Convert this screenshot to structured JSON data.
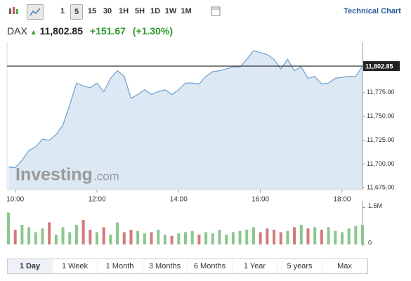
{
  "toolbar": {
    "intervals": [
      "1",
      "5",
      "15",
      "30",
      "1H",
      "5H",
      "1D",
      "1W",
      "1M"
    ],
    "link": "Technical Chart"
  },
  "header": {
    "symbol": "DAX",
    "price": "11,802.85",
    "change": "+151.67",
    "change_pct": "(+1.30%)"
  },
  "watermark": {
    "brand": "Investing",
    "suffix": ".com"
  },
  "ranges": [
    "1 Day",
    "1 Week",
    "1 Month",
    "3 Months",
    "6 Months",
    "1 Year",
    "5 years",
    "Max"
  ],
  "chart_data": [
    {
      "type": "area",
      "color": "#6f9fd0",
      "fill": "#dce8f4",
      "x": [
        "9:50",
        "10:00",
        "10:10",
        "10:20",
        "10:30",
        "10:40",
        "10:50",
        "11:00",
        "11:10",
        "11:20",
        "11:30",
        "11:40",
        "11:50",
        "12:00",
        "12:10",
        "12:20",
        "12:30",
        "12:40",
        "12:50",
        "13:00",
        "13:10",
        "13:20",
        "13:30",
        "13:40",
        "13:50",
        "14:00",
        "14:10",
        "14:20",
        "14:30",
        "14:40",
        "14:50",
        "15:00",
        "15:10",
        "15:20",
        "15:30",
        "15:40",
        "15:50",
        "16:00",
        "16:10",
        "16:20",
        "16:30",
        "16:40",
        "16:50",
        "17:00",
        "17:10",
        "17:20",
        "17:30",
        "17:40",
        "17:50",
        "18:00",
        "18:10",
        "18:20",
        "18:30"
      ],
      "values": [
        11697,
        11696,
        11704,
        11714,
        11718,
        11726,
        11725,
        11731,
        11741,
        11762,
        11785,
        11782,
        11780,
        11785,
        11776,
        11790,
        11798,
        11792,
        11769,
        11773,
        11778,
        11773,
        11776,
        11778,
        11773,
        11778,
        11785,
        11785,
        11784,
        11792,
        11797,
        11798,
        11800,
        11802,
        11802,
        11810,
        11819,
        11817,
        11815,
        11810,
        11800,
        11810,
        11798,
        11802,
        11790,
        11792,
        11784,
        11785,
        11790,
        11791,
        11792,
        11792,
        11802.85
      ],
      "xlim": [
        "9:50",
        "18:30"
      ],
      "xticks": [
        "10:00",
        "12:00",
        "14:00",
        "16:00",
        "18:00"
      ],
      "ylim": [
        11673,
        11828
      ],
      "yticks": [
        {
          "value": 11675,
          "label": "11,675.00"
        },
        {
          "value": 11700,
          "label": "11,700.00"
        },
        {
          "value": 11725,
          "label": "11,725.00"
        },
        {
          "value": 11750,
          "label": "11,750.00"
        },
        {
          "value": 11775,
          "label": "11,775.00"
        }
      ],
      "last_price": {
        "value": 11802.85,
        "label": "11,802.85"
      }
    },
    {
      "type": "bar",
      "up_color": "#8cc68c",
      "down_color": "#d37a7a",
      "values": [
        1300000,
        600000,
        800000,
        700000,
        500000,
        650000,
        900000,
        400000,
        700000,
        500000,
        800000,
        1000000,
        600000,
        500000,
        700000,
        400000,
        900000,
        500000,
        600000,
        550000,
        450000,
        500000,
        600000,
        400000,
        350000,
        450000,
        500000,
        550000,
        400000,
        500000,
        450000,
        600000,
        400000,
        500000,
        550000,
        600000,
        700000,
        500000,
        650000,
        600000,
        500000,
        550000,
        700000,
        800000,
        650000,
        700000,
        600000,
        700000,
        550000,
        500000,
        650000,
        750000,
        800000
      ],
      "ylim": [
        0,
        1600000
      ],
      "yticks": [
        0,
        {
          "value": 1500000,
          "label": "1.5M"
        }
      ]
    }
  ]
}
